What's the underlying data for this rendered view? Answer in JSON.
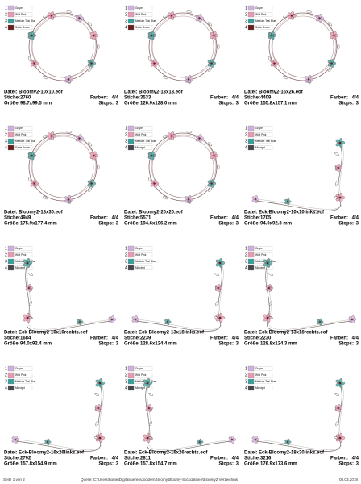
{
  "labels": {
    "datei": "Datei:",
    "stiche": "Stiche:",
    "farben": "Farben:",
    "groesse": "Größe:",
    "stops": "Stops:"
  },
  "legend_numbers": [
    1,
    2,
    3,
    4
  ],
  "palette": {
    "Grape": "#cfb0de",
    "Wild Pink": "#e79ab3",
    "Medium Teal Blue": "#3a9f9a",
    "Sable Brown": "#6a1b1b",
    "Midnight": "#45454c"
  },
  "items": [
    {
      "legend": [
        "Grape",
        "Wild Pink",
        "Medium Teal Blue",
        "Sable Brown"
      ],
      "file": "Bloomy2-10x10.eof",
      "stiche": 2760,
      "farben": "4/4",
      "groesse": "98.7x99.5 mm",
      "stops": 3
    },
    {
      "legend": [
        "Grape",
        "Wild Pink",
        "Medium Teal Blue",
        "Sable Brown"
      ],
      "file": "Bloomy2-13x18.eof",
      "stiche": 3533,
      "farben": "4/4",
      "groesse": "126.9x128.0 mm",
      "stops": 3
    },
    {
      "legend": [
        "Grape",
        "Wild Pink",
        "Medium Teal Blue",
        "Sable Brown"
      ],
      "file": "Bloomy2-16x26.eof",
      "stiche": 4409,
      "farben": "4/4",
      "groesse": "155.8x157.1 mm",
      "stops": 3
    },
    {
      "legend": [
        "Grape",
        "Wild Pink",
        "Medium Teal Blue",
        "Sable Brown"
      ],
      "file": "Bloomy2-18x30.eof",
      "stiche": 4949,
      "farben": "4/4",
      "groesse": "175.9x177.4 mm",
      "stops": 3
    },
    {
      "legend": [
        "Grape",
        "Wild Pink",
        "Medium Teal Blue",
        "Midnight"
      ],
      "file": "Bloomy2-20x20.eof",
      "stiche": 5571,
      "farben": "4/4",
      "groesse": "194.6x196.2 mm",
      "stops": 3
    },
    {
      "legend": [
        "Grape",
        "Wild Pink",
        "Medium Teal Blue",
        "Midnight"
      ],
      "file": "Eck-Bloomy2-10x10links.eof",
      "stiche": 1705,
      "farben": "4/4",
      "groesse": "94.0x92.3 mm",
      "stops": 3
    },
    {
      "legend": [
        "Grape",
        "Wild Pink",
        "Medium Teal Blue",
        "Midnight"
      ],
      "file": "Eck-Bloomy2-10x10rechts.eof",
      "stiche": 1684,
      "farben": "4/4",
      "groesse": "94.0x92.4 mm",
      "stops": 3
    },
    {
      "legend": [
        "Grape",
        "Wild Pink",
        "Medium Teal Blue",
        "Midnight"
      ],
      "file": "Eck-Bloomy2-13x18links.eof",
      "stiche": 2239,
      "farben": "4/4",
      "groesse": "128.6x124.4 mm",
      "stops": 3
    },
    {
      "legend": [
        "Grape",
        "Wild Pink",
        "Medium Teal Blue",
        "Midnight"
      ],
      "file": "Eck-Bloomy2-13x18rechts.eof",
      "stiche": 2230,
      "farben": "4/4",
      "groesse": "128.8x124.3 mm",
      "stops": 3
    },
    {
      "legend": [
        "Grape",
        "Wild Pink",
        "Medium Teal Blue",
        "Midnight"
      ],
      "file": "Eck-Bloomy2-16x26links.eof",
      "stiche": 2792,
      "farben": "4/4",
      "groesse": "157.8x154.9 mm",
      "stops": 3
    },
    {
      "legend": [
        "Grape",
        "Wild Pink",
        "Medium Teal Blue",
        "Midnight"
      ],
      "file": "Eck-Bloomy2-16x26rechts.eof",
      "stiche": 2811,
      "farben": "4/4",
      "groesse": "157.8x154.7 mm",
      "stops": 3
    },
    {
      "legend": [
        "Grape",
        "Wild Pink",
        "Medium Teal Blue",
        "Midnight"
      ],
      "file": "Eck-Bloomy2-18x30links.eof",
      "stiche": 3216,
      "farben": "4/4",
      "groesse": "176.9x173.6 mm",
      "stops": 3
    }
  ],
  "footer": {
    "page": "Seite 1 von 2",
    "source": "Quelle: C:\\Users\\home\\Digitalisieren\\doodles\\Bloomy\\Bloomy-Stickdateien\\Bloomy2 Verzeichnis",
    "date": "08.03.2018"
  }
}
